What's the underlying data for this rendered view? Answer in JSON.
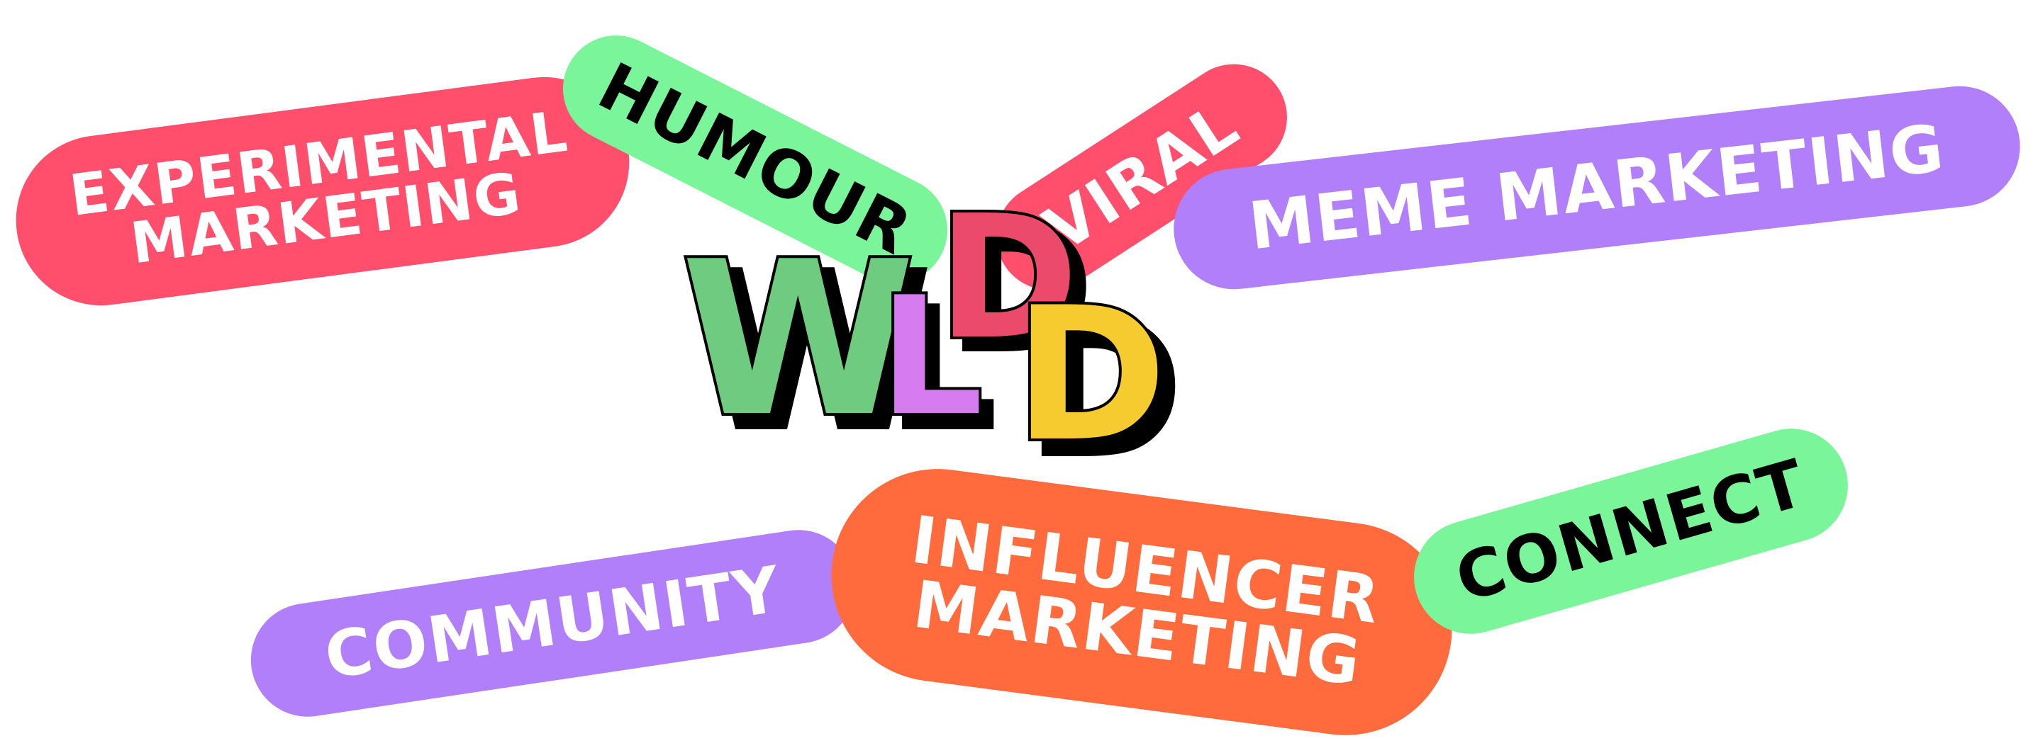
{
  "tags": {
    "experimental_marketing": {
      "label": "EXPERIMENTAL\nMARKETING",
      "color": "#FF4F6D",
      "text_color": "#FFFFFF"
    },
    "humour": {
      "label": "HUMOUR",
      "color": "#7AF59A",
      "text_color": "#000000"
    },
    "viral": {
      "label": "VIRAL",
      "color": "#FF4F6D",
      "text_color": "#FFFFFF"
    },
    "meme_marketing": {
      "label": "MEME MARKETING",
      "color": "#B27FFB",
      "text_color": "#FFFFFF"
    },
    "community": {
      "label": "COMMUNITY",
      "color": "#B27FFB",
      "text_color": "#FFFFFF"
    },
    "influencer_marketing": {
      "label": "INFLUENCER\nMARKETING",
      "color": "#FF6B3D",
      "text_color": "#FFFFFF"
    },
    "connect": {
      "label": "CONNECT",
      "color": "#7AF59A",
      "text_color": "#000000"
    }
  },
  "logo": {
    "letters": [
      {
        "char": "W",
        "color": "#6FCB80"
      },
      {
        "char": "L",
        "color": "#D67CF0"
      },
      {
        "char": "D",
        "color": "#EC4A6B"
      },
      {
        "char": "D",
        "color": "#F5CB30"
      }
    ]
  }
}
